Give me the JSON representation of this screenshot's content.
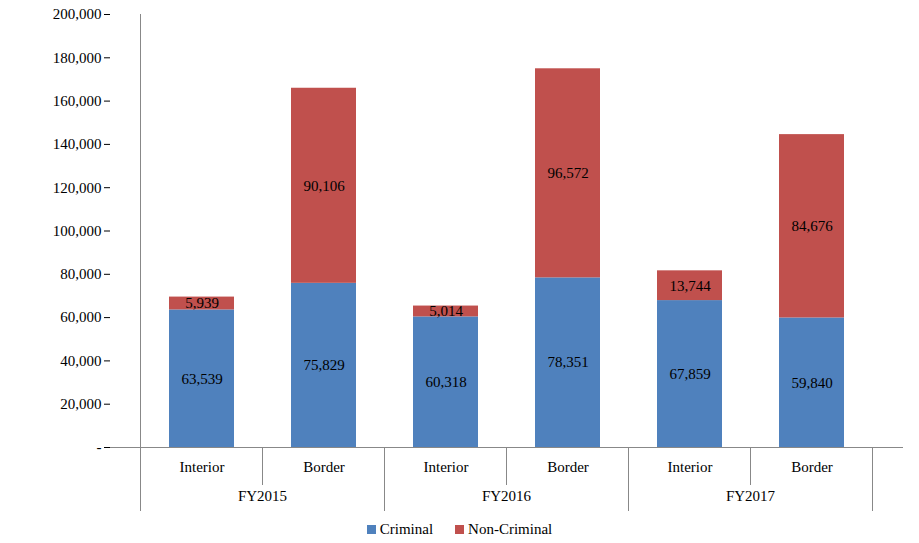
{
  "chart_data": {
    "type": "bar",
    "stacked": true,
    "data_labels": true,
    "grid": false,
    "legend": "bottom",
    "categories": [
      "Interior",
      "Border",
      "Interior",
      "Border",
      "Interior",
      "Border"
    ],
    "category_groups": [
      "FY2015",
      "FY2015",
      "FY2016",
      "FY2016",
      "FY2017",
      "FY2017"
    ],
    "series": [
      {
        "name": "Criminal",
        "color": "#4f81bd",
        "values": [
          63539,
          75829,
          60318,
          78351,
          67859,
          59840
        ],
        "value_labels": [
          "63,539",
          "75,829",
          "60,318",
          "78,351",
          "67,859",
          "59,840"
        ]
      },
      {
        "name": "Non-Criminal",
        "color": "#c0504d",
        "values": [
          5939,
          90106,
          5014,
          96572,
          13744,
          84676
        ],
        "value_labels": [
          "5,939",
          "90,106",
          "5,014",
          "96,572",
          "13,744",
          "84,676"
        ]
      }
    ],
    "ylim": [
      0,
      200000
    ],
    "yticks": [
      {
        "value": 0,
        "label": "-"
      },
      {
        "value": 20000,
        "label": "20,000"
      },
      {
        "value": 40000,
        "label": "40,000"
      },
      {
        "value": 60000,
        "label": "60,000"
      },
      {
        "value": 80000,
        "label": "80,000"
      },
      {
        "value": 100000,
        "label": "100,000"
      },
      {
        "value": 120000,
        "label": "120,000"
      },
      {
        "value": 140000,
        "label": "140,000"
      },
      {
        "value": 160000,
        "label": "160,000"
      },
      {
        "value": 180000,
        "label": "180,000"
      },
      {
        "value": 200000,
        "label": "200,000"
      }
    ]
  }
}
